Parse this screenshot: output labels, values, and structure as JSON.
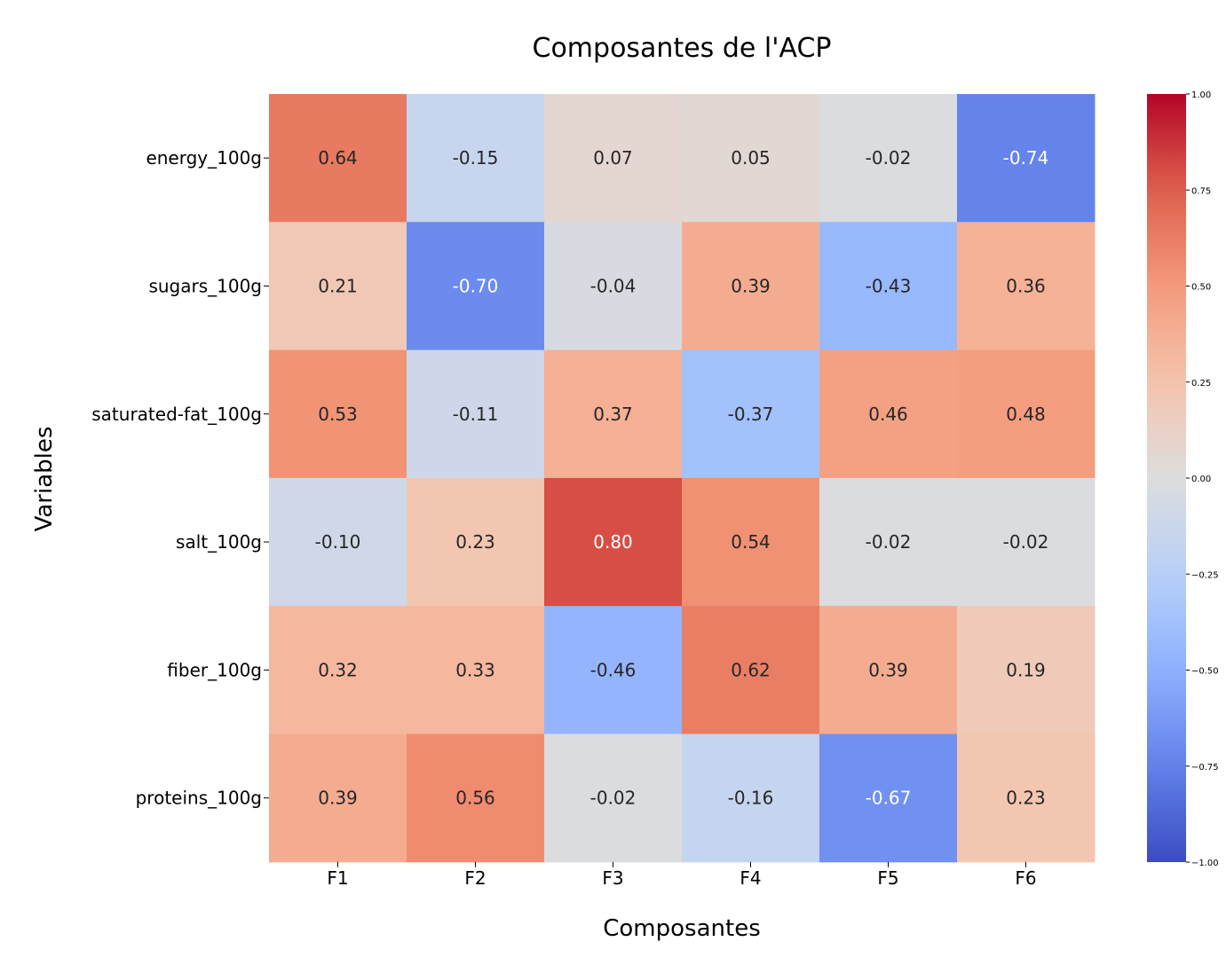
{
  "chart_data": {
    "type": "heatmap",
    "title": "Composantes de l'ACP",
    "xlabel": "Composantes",
    "ylabel": "Variables",
    "x": [
      "F1",
      "F2",
      "F3",
      "F4",
      "F5",
      "F6"
    ],
    "y": [
      "energy_100g",
      "sugars_100g",
      "saturated-fat_100g",
      "salt_100g",
      "fiber_100g",
      "proteins_100g"
    ],
    "values": [
      [
        0.64,
        -0.15,
        0.07,
        0.05,
        -0.02,
        -0.74
      ],
      [
        0.21,
        -0.7,
        -0.04,
        0.39,
        -0.43,
        0.36
      ],
      [
        0.53,
        -0.11,
        0.37,
        -0.37,
        0.46,
        0.48
      ],
      [
        -0.1,
        0.23,
        0.8,
        0.54,
        -0.02,
        -0.02
      ],
      [
        0.32,
        0.33,
        -0.46,
        0.62,
        0.39,
        0.19
      ],
      [
        0.39,
        0.56,
        -0.02,
        -0.16,
        -0.67,
        0.23
      ]
    ],
    "labels": [
      [
        "0.64",
        "-0.15",
        "0.07",
        "0.05",
        "-0.02",
        "-0.74"
      ],
      [
        "0.21",
        "-0.70",
        "-0.04",
        "0.39",
        "-0.43",
        "0.36"
      ],
      [
        "0.53",
        "-0.11",
        "0.37",
        "-0.37",
        "0.46",
        "0.48"
      ],
      [
        "-0.10",
        "0.23",
        "0.80",
        "0.54",
        "-0.02",
        "-0.02"
      ],
      [
        "0.32",
        "0.33",
        "-0.46",
        "0.62",
        "0.39",
        "0.19"
      ],
      [
        "0.39",
        "0.56",
        "-0.02",
        "-0.16",
        "-0.67",
        "0.23"
      ]
    ],
    "colormap": "coolwarm",
    "vmin": -1.0,
    "vmax": 1.0,
    "colorbar": {
      "ticks": [
        1.0,
        0.75,
        0.5,
        0.25,
        0.0,
        -0.25,
        -0.5,
        -0.75,
        -1.0
      ],
      "tick_labels": [
        "1.00",
        "0.75",
        "0.50",
        "0.25",
        "0.00",
        "−0.25",
        "−0.50",
        "−0.75",
        "−1.00"
      ],
      "placement": "right"
    }
  }
}
